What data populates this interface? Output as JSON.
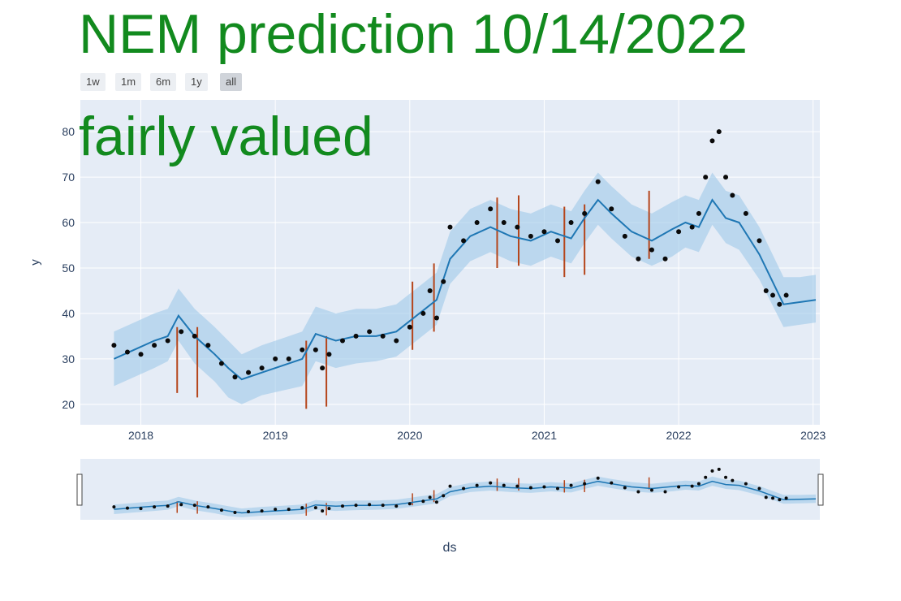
{
  "page": {
    "title": "NEM prediction 10/14/2022",
    "subtitle": "fairly valued",
    "range_buttons": [
      {
        "label": "1w",
        "active": false
      },
      {
        "label": "1m",
        "active": false
      },
      {
        "label": "6m",
        "active": false
      },
      {
        "label": "1y",
        "active": false
      },
      {
        "label": "all",
        "active": true
      }
    ],
    "colors": {
      "title": "#128a1e",
      "plot_bg": "#e5ecf6",
      "forecast_line": "#1f77b4",
      "band": "#9ec9ea",
      "points": "#0a0a0a",
      "changepoints": "#b5451b"
    }
  },
  "chart_data": {
    "type": "line",
    "xlabel": "ds",
    "ylabel": "y",
    "xlim": [
      2017.55,
      2023.05
    ],
    "ylim": [
      15.5,
      87
    ],
    "xticks": [
      2018,
      2019,
      2020,
      2021,
      2022,
      2023
    ],
    "xtick_labels": [
      "2018",
      "2019",
      "2020",
      "2021",
      "2022",
      "2023"
    ],
    "yticks": [
      20,
      30,
      40,
      50,
      60,
      70,
      80
    ],
    "ytick_labels": [
      "20",
      "30",
      "40",
      "50",
      "60",
      "70",
      "80"
    ],
    "grid": true,
    "legend": "none",
    "series": [
      {
        "kind": "points",
        "x": [
          2017.8,
          2017.9,
          2018.0,
          2018.1,
          2018.2,
          2018.3,
          2018.4,
          2018.5,
          2018.6,
          2018.7,
          2018.8,
          2018.9,
          2019.0,
          2019.1,
          2019.2,
          2019.3,
          2019.35,
          2019.4,
          2019.5,
          2019.6,
          2019.7,
          2019.8,
          2019.9,
          2020.0,
          2020.1,
          2020.15,
          2020.2,
          2020.25,
          2020.3,
          2020.4,
          2020.5,
          2020.6,
          2020.7,
          2020.8,
          2020.9,
          2021.0,
          2021.1,
          2021.2,
          2021.3,
          2021.4,
          2021.5,
          2021.6,
          2021.7,
          2021.8,
          2021.9,
          2022.0,
          2022.1,
          2022.15,
          2022.2,
          2022.25,
          2022.3,
          2022.35,
          2022.4,
          2022.5,
          2022.6,
          2022.65,
          2022.7,
          2022.75,
          2022.8
        ],
        "y": [
          33,
          31.5,
          31,
          33,
          34,
          36,
          35,
          33,
          29,
          26,
          27,
          28,
          30,
          30,
          32,
          32,
          28,
          31,
          34,
          35,
          36,
          35,
          34,
          37,
          40,
          45,
          39,
          47,
          59,
          56,
          60,
          63,
          60,
          59,
          57,
          58,
          56,
          60,
          62,
          69,
          63,
          57,
          52,
          54,
          52,
          58,
          59,
          62,
          70,
          78,
          80,
          70,
          66,
          62,
          56,
          45,
          44,
          42,
          44
        ]
      },
      {
        "kind": "forecast",
        "x": [
          2017.8,
          2017.95,
          2018.1,
          2018.2,
          2018.28,
          2018.4,
          2018.55,
          2018.65,
          2018.75,
          2018.9,
          2019.05,
          2019.2,
          2019.3,
          2019.45,
          2019.6,
          2019.75,
          2019.9,
          2020.05,
          2020.2,
          2020.3,
          2020.45,
          2020.6,
          2020.75,
          2020.9,
          2021.05,
          2021.2,
          2021.3,
          2021.4,
          2021.5,
          2021.65,
          2021.8,
          2021.95,
          2022.05,
          2022.15,
          2022.25,
          2022.35,
          2022.45,
          2022.6,
          2022.78,
          2022.9,
          2023.02
        ],
        "y": [
          30,
          32,
          34,
          35,
          39.5,
          35,
          31,
          28,
          25.5,
          27,
          28.5,
          30,
          35.5,
          34,
          35,
          35,
          36,
          39.5,
          43,
          52,
          57,
          59,
          57,
          56,
          58,
          56.5,
          61,
          65,
          62,
          58,
          56,
          58.5,
          60,
          59,
          65,
          61,
          60,
          53,
          42,
          42.5,
          43
        ],
        "lower": [
          24,
          26,
          28,
          29.5,
          34,
          29,
          25,
          21.5,
          20,
          22,
          23,
          24,
          29.5,
          28,
          29,
          29.5,
          30.5,
          34,
          37.5,
          46.5,
          51.5,
          53.5,
          51.5,
          50.5,
          52.5,
          51,
          55.5,
          59.5,
          56.5,
          52.5,
          50.5,
          52.5,
          54.5,
          53.5,
          59.5,
          55.5,
          54,
          47.5,
          37,
          37.5,
          38
        ],
        "upper": [
          36,
          38,
          40,
          41,
          45.5,
          41,
          37,
          34,
          31,
          33,
          34.5,
          36,
          41.5,
          40,
          41,
          41,
          42,
          45.5,
          49,
          58,
          63,
          65,
          63,
          62,
          64,
          62.5,
          67,
          71,
          68,
          64,
          62,
          64.5,
          66,
          65,
          71,
          67,
          66,
          59,
          48,
          48,
          48.5
        ]
      }
    ],
    "changepoints": [
      {
        "x": 2018.27,
        "ymin": 22.5,
        "ymax": 37
      },
      {
        "x": 2018.42,
        "ymin": 21.5,
        "ymax": 37
      },
      {
        "x": 2019.23,
        "ymin": 19,
        "ymax": 34
      },
      {
        "x": 2019.38,
        "ymin": 19.5,
        "ymax": 35
      },
      {
        "x": 2020.02,
        "ymin": 32,
        "ymax": 47
      },
      {
        "x": 2020.18,
        "ymin": 36,
        "ymax": 51
      },
      {
        "x": 2020.65,
        "ymin": 50,
        "ymax": 65.5
      },
      {
        "x": 2020.81,
        "ymin": 50.5,
        "ymax": 66
      },
      {
        "x": 2021.15,
        "ymin": 48,
        "ymax": 63.5
      },
      {
        "x": 2021.3,
        "ymin": 48.5,
        "ymax": 64
      },
      {
        "x": 2021.78,
        "ymin": 52,
        "ymax": 67
      }
    ]
  }
}
